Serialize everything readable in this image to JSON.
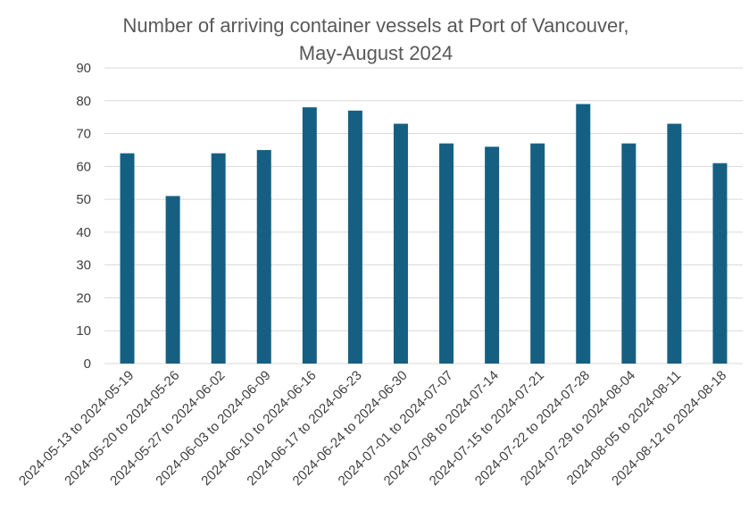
{
  "chart_data": {
    "type": "bar",
    "title_lines": [
      "Number of arriving container vessels at Port of Vancouver,",
      "May-August 2024"
    ],
    "xlabel": "",
    "ylabel": "",
    "ylim": [
      0,
      90
    ],
    "yticks": [
      0,
      10,
      20,
      30,
      40,
      50,
      60,
      70,
      80,
      90
    ],
    "grid": true,
    "legend": "none",
    "bar_color": "#156082",
    "categories": [
      "2024-05-13 to 2024-05-19",
      "2024-05-20 to 2024-05-26",
      "2024-05-27 to 2024-06-02",
      "2024-06-03 to 2024-06-09",
      "2024-06-10 to 2024-06-16",
      "2024-06-17 to 2024-06-23",
      "2024-06-24 to 2024-06-30",
      "2024-07-01 to 2024-07-07",
      "2024-07-08 to 2024-07-14",
      "2024-07-15 to 2024-07-21",
      "2024-07-22 to 2024-07-28",
      "2024-07-29 to 2024-08-04",
      "2024-08-05 to 2024-08-11",
      "2024-08-12 to 2024-08-18"
    ],
    "values": [
      64,
      51,
      64,
      65,
      78,
      77,
      73,
      67,
      66,
      67,
      79,
      67,
      73,
      61
    ]
  }
}
